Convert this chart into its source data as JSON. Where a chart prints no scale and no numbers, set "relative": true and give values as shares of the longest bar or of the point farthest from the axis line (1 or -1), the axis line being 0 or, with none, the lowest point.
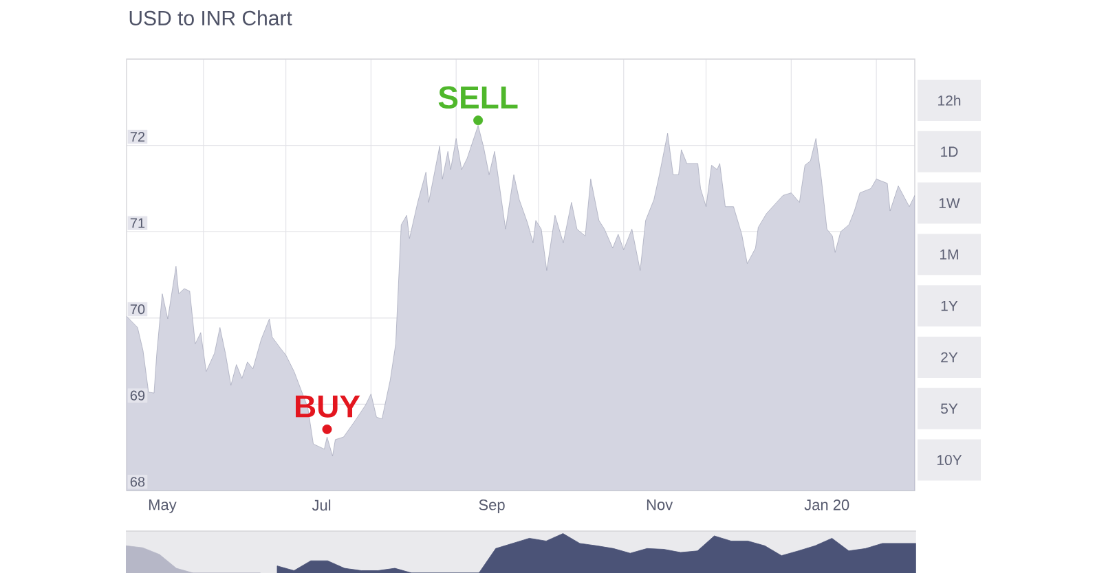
{
  "chart_data": [
    {
      "type": "area",
      "title": "USD to INR Chart",
      "grid": true,
      "xlim": [
        "2019-05-04",
        "2020-02-15"
      ],
      "xticks": [
        {
          "value": "2019-05-17",
          "label": "May"
        },
        {
          "value": "2019-06-01",
          "label": null
        },
        {
          "value": "2019-07-01",
          "label": null
        },
        {
          "value": "2019-07-14",
          "label": "Jul"
        },
        {
          "value": "2019-08-01",
          "label": null
        },
        {
          "value": "2019-09-01",
          "label": null
        },
        {
          "value": "2019-09-14",
          "label": "Sep"
        },
        {
          "value": "2019-10-01",
          "label": null
        },
        {
          "value": "2019-11-01",
          "label": null
        },
        {
          "value": "2019-11-14",
          "label": "Nov"
        },
        {
          "value": "2019-12-01",
          "label": null
        },
        {
          "value": "2020-01-01",
          "label": null
        },
        {
          "value": "2020-01-14",
          "label": "Jan 20"
        },
        {
          "value": "2020-02-01",
          "label": null
        }
      ],
      "ylim": [
        68,
        73
      ],
      "yticks": [
        68,
        69,
        70,
        71,
        72
      ],
      "x": [
        "2019-05-04",
        "2019-05-08",
        "2019-05-10",
        "2019-05-12",
        "2019-05-14",
        "2019-05-15",
        "2019-05-17",
        "2019-05-19",
        "2019-05-22",
        "2019-05-23",
        "2019-05-25",
        "2019-05-27",
        "2019-05-29",
        "2019-05-31",
        "2019-06-02",
        "2019-06-05",
        "2019-06-07",
        "2019-06-09",
        "2019-06-11",
        "2019-06-13",
        "2019-06-15",
        "2019-06-17",
        "2019-06-19",
        "2019-06-22",
        "2019-06-25",
        "2019-06-26",
        "2019-06-29",
        "2019-07-01",
        "2019-07-04",
        "2019-07-09",
        "2019-07-11",
        "2019-07-15",
        "2019-07-16",
        "2019-07-18",
        "2019-07-19",
        "2019-07-22",
        "2019-07-26",
        "2019-07-30",
        "2019-08-01",
        "2019-08-03",
        "2019-08-05",
        "2019-08-08",
        "2019-08-10",
        "2019-08-12",
        "2019-08-14",
        "2019-08-15",
        "2019-08-18",
        "2019-08-21",
        "2019-08-22",
        "2019-08-26",
        "2019-08-27",
        "2019-08-29",
        "2019-08-30",
        "2019-09-01",
        "2019-09-03",
        "2019-09-05",
        "2019-09-09",
        "2019-09-11",
        "2019-09-13",
        "2019-09-15",
        "2019-09-19",
        "2019-09-22",
        "2019-09-24",
        "2019-09-27",
        "2019-09-29",
        "2019-09-30",
        "2019-10-02",
        "2019-10-04",
        "2019-10-07",
        "2019-10-10",
        "2019-10-13",
        "2019-10-15",
        "2019-10-18",
        "2019-10-20",
        "2019-10-23",
        "2019-10-25",
        "2019-10-28",
        "2019-10-30",
        "2019-11-01",
        "2019-11-04",
        "2019-11-07",
        "2019-11-09",
        "2019-11-12",
        "2019-11-14",
        "2019-11-17",
        "2019-11-19",
        "2019-11-21",
        "2019-11-22",
        "2019-11-24",
        "2019-11-28",
        "2019-11-29",
        "2019-12-01",
        "2019-12-03",
        "2019-12-05",
        "2019-12-06",
        "2019-12-08",
        "2019-12-11",
        "2019-12-14",
        "2019-12-16",
        "2019-12-19",
        "2019-12-20",
        "2019-12-23",
        "2019-12-29",
        "2020-01-01",
        "2020-01-04",
        "2020-01-06",
        "2020-01-08",
        "2020-01-10",
        "2020-01-12",
        "2020-01-14",
        "2020-01-16",
        "2020-01-17",
        "2020-01-19",
        "2020-01-22",
        "2020-01-24",
        "2020-01-26",
        "2020-01-30",
        "2020-02-01",
        "2020-02-05",
        "2020-02-06",
        "2020-02-09",
        "2020-02-13",
        "2020-02-15"
      ],
      "series": [
        {
          "color": "#d4d5e1",
          "values": [
            70.02,
            69.89,
            69.62,
            69.14,
            69.13,
            69.59,
            70.28,
            69.99,
            70.6,
            70.28,
            70.34,
            70.31,
            69.7,
            69.83,
            69.38,
            69.59,
            69.89,
            69.59,
            69.22,
            69.46,
            69.3,
            69.49,
            69.41,
            69.75,
            69.99,
            69.78,
            69.65,
            69.57,
            69.38,
            68.96,
            68.54,
            68.48,
            68.62,
            68.4,
            68.59,
            68.62,
            68.8,
            68.99,
            69.12,
            68.85,
            68.83,
            69.28,
            69.7,
            71.08,
            71.19,
            70.92,
            71.34,
            71.69,
            71.34,
            71.99,
            71.61,
            71.93,
            71.72,
            72.08,
            71.72,
            71.85,
            72.23,
            71.98,
            71.66,
            71.93,
            71.03,
            71.66,
            71.37,
            71.1,
            70.87,
            71.13,
            71.03,
            70.55,
            71.19,
            70.87,
            71.34,
            71.03,
            70.95,
            71.61,
            71.13,
            71.03,
            70.81,
            70.97,
            70.79,
            71.03,
            70.55,
            71.13,
            71.37,
            71.66,
            72.14,
            71.66,
            71.66,
            71.95,
            71.79,
            71.79,
            71.5,
            71.29,
            71.77,
            71.72,
            71.79,
            71.29,
            71.29,
            70.97,
            70.63,
            70.81,
            71.05,
            71.21,
            71.42,
            71.45,
            71.34,
            71.77,
            71.82,
            72.08,
            71.61,
            71.03,
            70.95,
            70.76,
            71.0,
            71.08,
            71.24,
            71.45,
            71.5,
            71.61,
            71.56,
            71.24,
            71.53,
            71.29,
            71.42
          ]
        },
        {
          "type": "scatter",
          "name": "BUY",
          "color": "#e3161f",
          "marker": "circle",
          "x": [
            "2019-07-16"
          ],
          "values": [
            68.71
          ]
        },
        {
          "type": "scatter",
          "name": "SELL",
          "color": "#4fb72b",
          "marker": "circle",
          "x": [
            "2019-09-09"
          ],
          "values": [
            72.29
          ]
        }
      ],
      "annotations": [
        "12h",
        "1D",
        "1W",
        "1M",
        "1Y",
        "2Y",
        "5Y",
        "10Y"
      ]
    },
    {
      "type": "area",
      "relative": true,
      "categories": [
        null,
        null,
        null,
        null,
        null,
        null,
        null,
        null,
        null,
        null,
        null,
        null,
        null,
        null,
        null,
        null,
        null,
        null,
        null,
        null,
        null,
        null,
        null,
        null,
        null,
        null,
        null,
        null,
        null,
        null,
        null,
        null,
        null,
        null,
        null,
        null,
        null,
        null,
        null,
        null,
        null,
        null,
        null,
        null,
        null,
        null,
        null,
        null
      ],
      "series": [
        {
          "color": "#b6b7c7",
          "values": [
            0.69,
            0.64,
            0.47,
            0.12,
            0,
            0,
            0,
            0,
            0,
            null,
            null,
            null,
            null,
            null,
            null,
            null,
            null,
            null,
            null,
            null,
            null,
            null,
            null,
            null,
            null,
            null,
            null,
            null,
            null,
            null,
            null,
            null,
            null,
            null,
            null,
            null,
            null,
            null,
            null,
            null,
            null,
            null,
            null,
            null,
            null,
            null,
            null,
            null
          ]
        },
        {
          "color": "#4b5377",
          "values": [
            null,
            null,
            null,
            null,
            null,
            null,
            null,
            null,
            null,
            0.18,
            0.06,
            0.31,
            0.31,
            0.12,
            0.06,
            0.06,
            0.12,
            0,
            0,
            0,
            0,
            0,
            0.62,
            0.75,
            0.88,
            0.81,
            1,
            0.75,
            0.69,
            0.62,
            0.5,
            0.62,
            0.6,
            0.52,
            0.56,
            0.94,
            0.81,
            0.81,
            0.69,
            0.44,
            0.56,
            0.69,
            0.88,
            0.56,
            0.62,
            0.75,
            0.75,
            0.75
          ]
        }
      ]
    }
  ]
}
